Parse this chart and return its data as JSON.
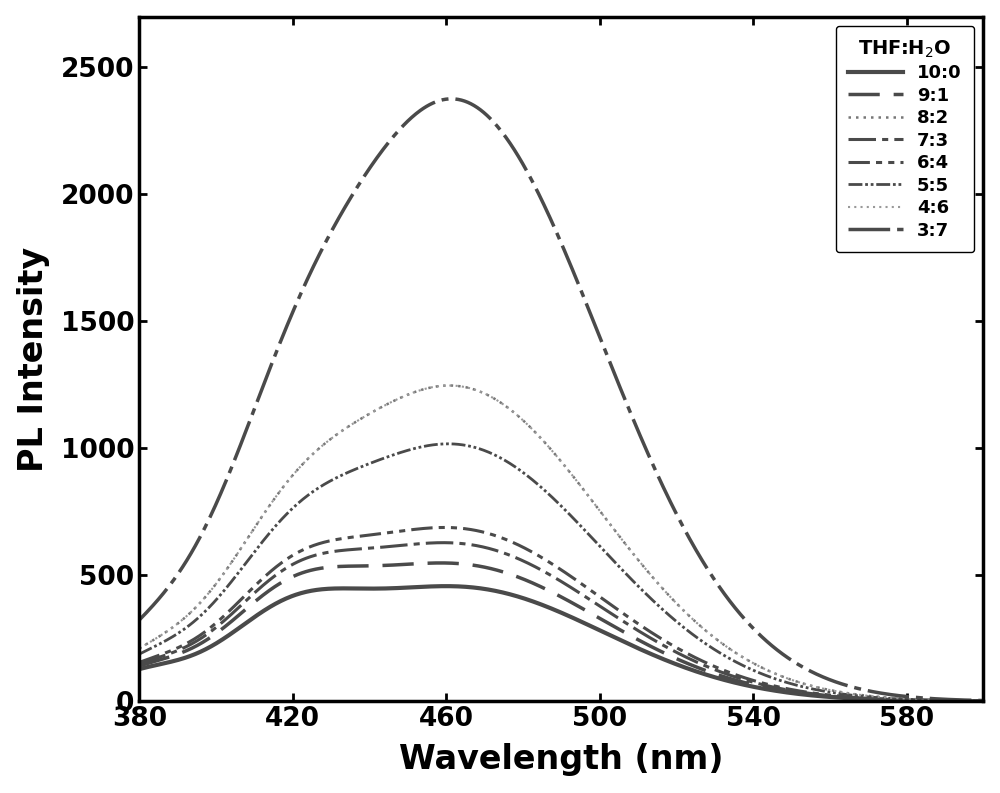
{
  "xlabel": "Wavelength (nm)",
  "ylabel": "PL Intensity",
  "legend_title": "THF:H$_2$O",
  "xlim": [
    380,
    600
  ],
  "ylim": [
    0,
    2700
  ],
  "yticks": [
    0,
    500,
    1000,
    1500,
    2000,
    2500
  ],
  "xticks": [
    380,
    420,
    460,
    500,
    540,
    580
  ],
  "series": [
    {
      "label": "10:0",
      "ls_name": "solid",
      "linewidth": 3.0,
      "color": "#4a4a4a",
      "peak_wl": 463,
      "peak_val": 450,
      "sigma1": 38,
      "shoulder_wl": 418,
      "shoulder_val": 180,
      "sigma2": 16,
      "base": 75
    },
    {
      "label": "9:1",
      "ls_name": "dashed",
      "linewidth": 2.5,
      "color": "#4a4a4a",
      "peak_wl": 462,
      "peak_val": 540,
      "sigma1": 38,
      "shoulder_wl": 418,
      "shoulder_val": 200,
      "sigma2": 16,
      "base": 75
    },
    {
      "label": "8:2",
      "ls_name": "fine_dotted",
      "linewidth": 1.8,
      "color": "#777777",
      "peak_wl": 462,
      "peak_val": 1240,
      "sigma1": 38,
      "shoulder_wl": 418,
      "shoulder_val": 220,
      "sigma2": 16,
      "base": 75
    },
    {
      "label": "7:3",
      "ls_name": "dashdot",
      "linewidth": 2.2,
      "color": "#4a4a4a",
      "peak_wl": 462,
      "peak_val": 620,
      "sigma1": 38,
      "shoulder_wl": 418,
      "shoulder_val": 205,
      "sigma2": 16,
      "base": 75
    },
    {
      "label": "6:4",
      "ls_name": "dashdotdot",
      "linewidth": 2.2,
      "color": "#4a4a4a",
      "peak_wl": 462,
      "peak_val": 680,
      "sigma1": 38,
      "shoulder_wl": 418,
      "shoulder_val": 208,
      "sigma2": 16,
      "base": 75
    },
    {
      "label": "5:5",
      "ls_name": "dense_dashdot",
      "linewidth": 2.0,
      "color": "#4a4a4a",
      "peak_wl": 462,
      "peak_val": 1010,
      "sigma1": 38,
      "shoulder_wl": 418,
      "shoulder_val": 215,
      "sigma2": 16,
      "base": 75
    },
    {
      "label": "4:6",
      "ls_name": "fine_dotted2",
      "linewidth": 1.5,
      "color": "#999999",
      "peak_wl": 462,
      "peak_val": 1240,
      "sigma1": 38,
      "shoulder_wl": 418,
      "shoulder_val": 220,
      "sigma2": 16,
      "base": 75
    },
    {
      "label": "3:7",
      "ls_name": "long_dashdot",
      "linewidth": 2.5,
      "color": "#4a4a4a",
      "peak_wl": 462,
      "peak_val": 2370,
      "sigma1": 38,
      "shoulder_wl": 418,
      "shoulder_val": 250,
      "sigma2": 16,
      "base": 75
    }
  ]
}
